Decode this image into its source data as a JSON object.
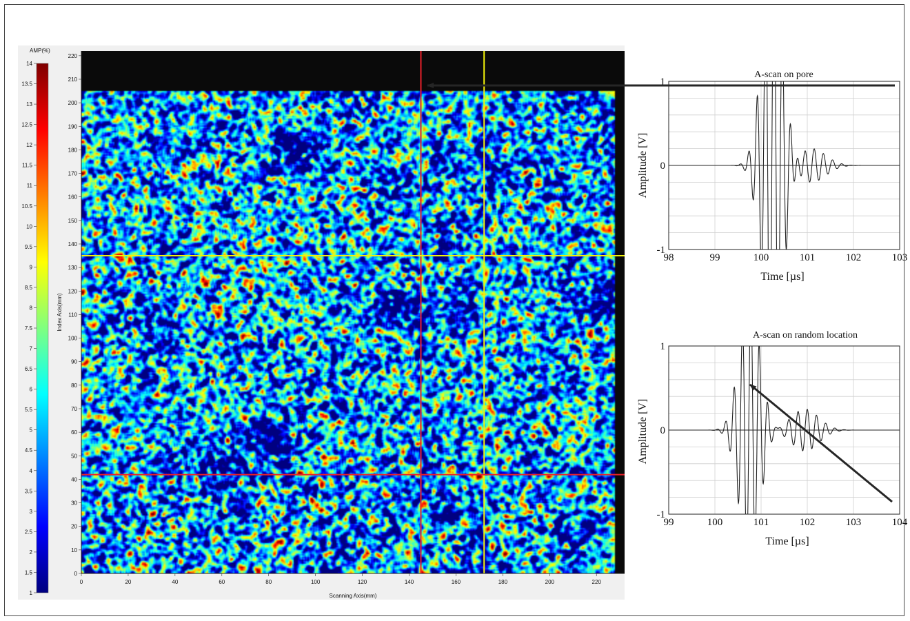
{
  "cscan": {
    "colorbar_title": "AMP(%)",
    "colorbar_ticks": [
      "14",
      "13.5",
      "13",
      "12.5",
      "12",
      "11.5",
      "11",
      "10.5",
      "10",
      "9.5",
      "9",
      "8.5",
      "8",
      "7.5",
      "7",
      "6.5",
      "6",
      "5.5",
      "5",
      "4.5",
      "4",
      "3.5",
      "3",
      "2.5",
      "2",
      "1.5",
      "1"
    ],
    "x_axis_label": "Scanning Axis(mm)",
    "y_axis_label": "Index Axis(mm)",
    "x_ticks": [
      "0",
      "20",
      "40",
      "60",
      "80",
      "100",
      "120",
      "140",
      "160",
      "180",
      "200",
      "220"
    ],
    "y_ticks": [
      "220",
      "210",
      "200",
      "190",
      "180",
      "170",
      "160",
      "150",
      "140",
      "130",
      "120",
      "110",
      "100",
      "90",
      "80",
      "70",
      "60",
      "50",
      "40",
      "30",
      "20",
      "10",
      "0"
    ],
    "colors": {
      "cursor_red": "#e8202a",
      "cursor_yellow": "#f2f20a",
      "background": "#0a0a0a",
      "arrow": "#262626"
    }
  },
  "chart_data": [
    {
      "type": "heatmap",
      "title": "",
      "xlabel": "Scanning Axis(mm)",
      "ylabel": "Index Axis(mm)",
      "xlim": [
        0,
        232
      ],
      "ylim": [
        0,
        222
      ],
      "colorbar": {
        "label": "AMP(%)",
        "range": [
          1,
          14
        ]
      },
      "cursors": {
        "red_x": 145,
        "yellow_x": 172,
        "yellow_y": 135,
        "red_y": 42
      }
    },
    {
      "type": "line",
      "title": "A-scan on pore",
      "xlabel": "Time [µs]",
      "ylabel": "Amplitude [V]",
      "xlim": [
        98,
        103
      ],
      "ylim": [
        -1,
        1
      ],
      "x_ticks": [
        "98",
        "99",
        "100",
        "101",
        "102",
        "103"
      ],
      "y_ticks": [
        "1",
        "0",
        "-1"
      ],
      "signal": {
        "burst_center": 100.25,
        "burst_width": 0.22,
        "burst_freq": 5.5,
        "burst_amp": 2.6,
        "echo_center": 101.1,
        "echo_width": 0.3,
        "echo_freq": 5.0,
        "echo_amp": 0.2
      }
    },
    {
      "type": "line",
      "title": "A-scan on random location",
      "xlabel": "Time [µs]",
      "ylabel": "Amplitude [V]",
      "xlim": [
        99,
        104
      ],
      "ylim": [
        -1,
        1
      ],
      "x_ticks": [
        "99",
        "100",
        "101",
        "102",
        "103",
        "104"
      ],
      "y_ticks": [
        "1",
        "0",
        "-1"
      ],
      "signal": {
        "burst_center": 100.75,
        "burst_width": 0.22,
        "burst_freq": 5.5,
        "burst_amp": 1.6,
        "echo_center": 101.95,
        "echo_width": 0.3,
        "echo_freq": 5.0,
        "echo_amp": 0.25
      }
    }
  ]
}
